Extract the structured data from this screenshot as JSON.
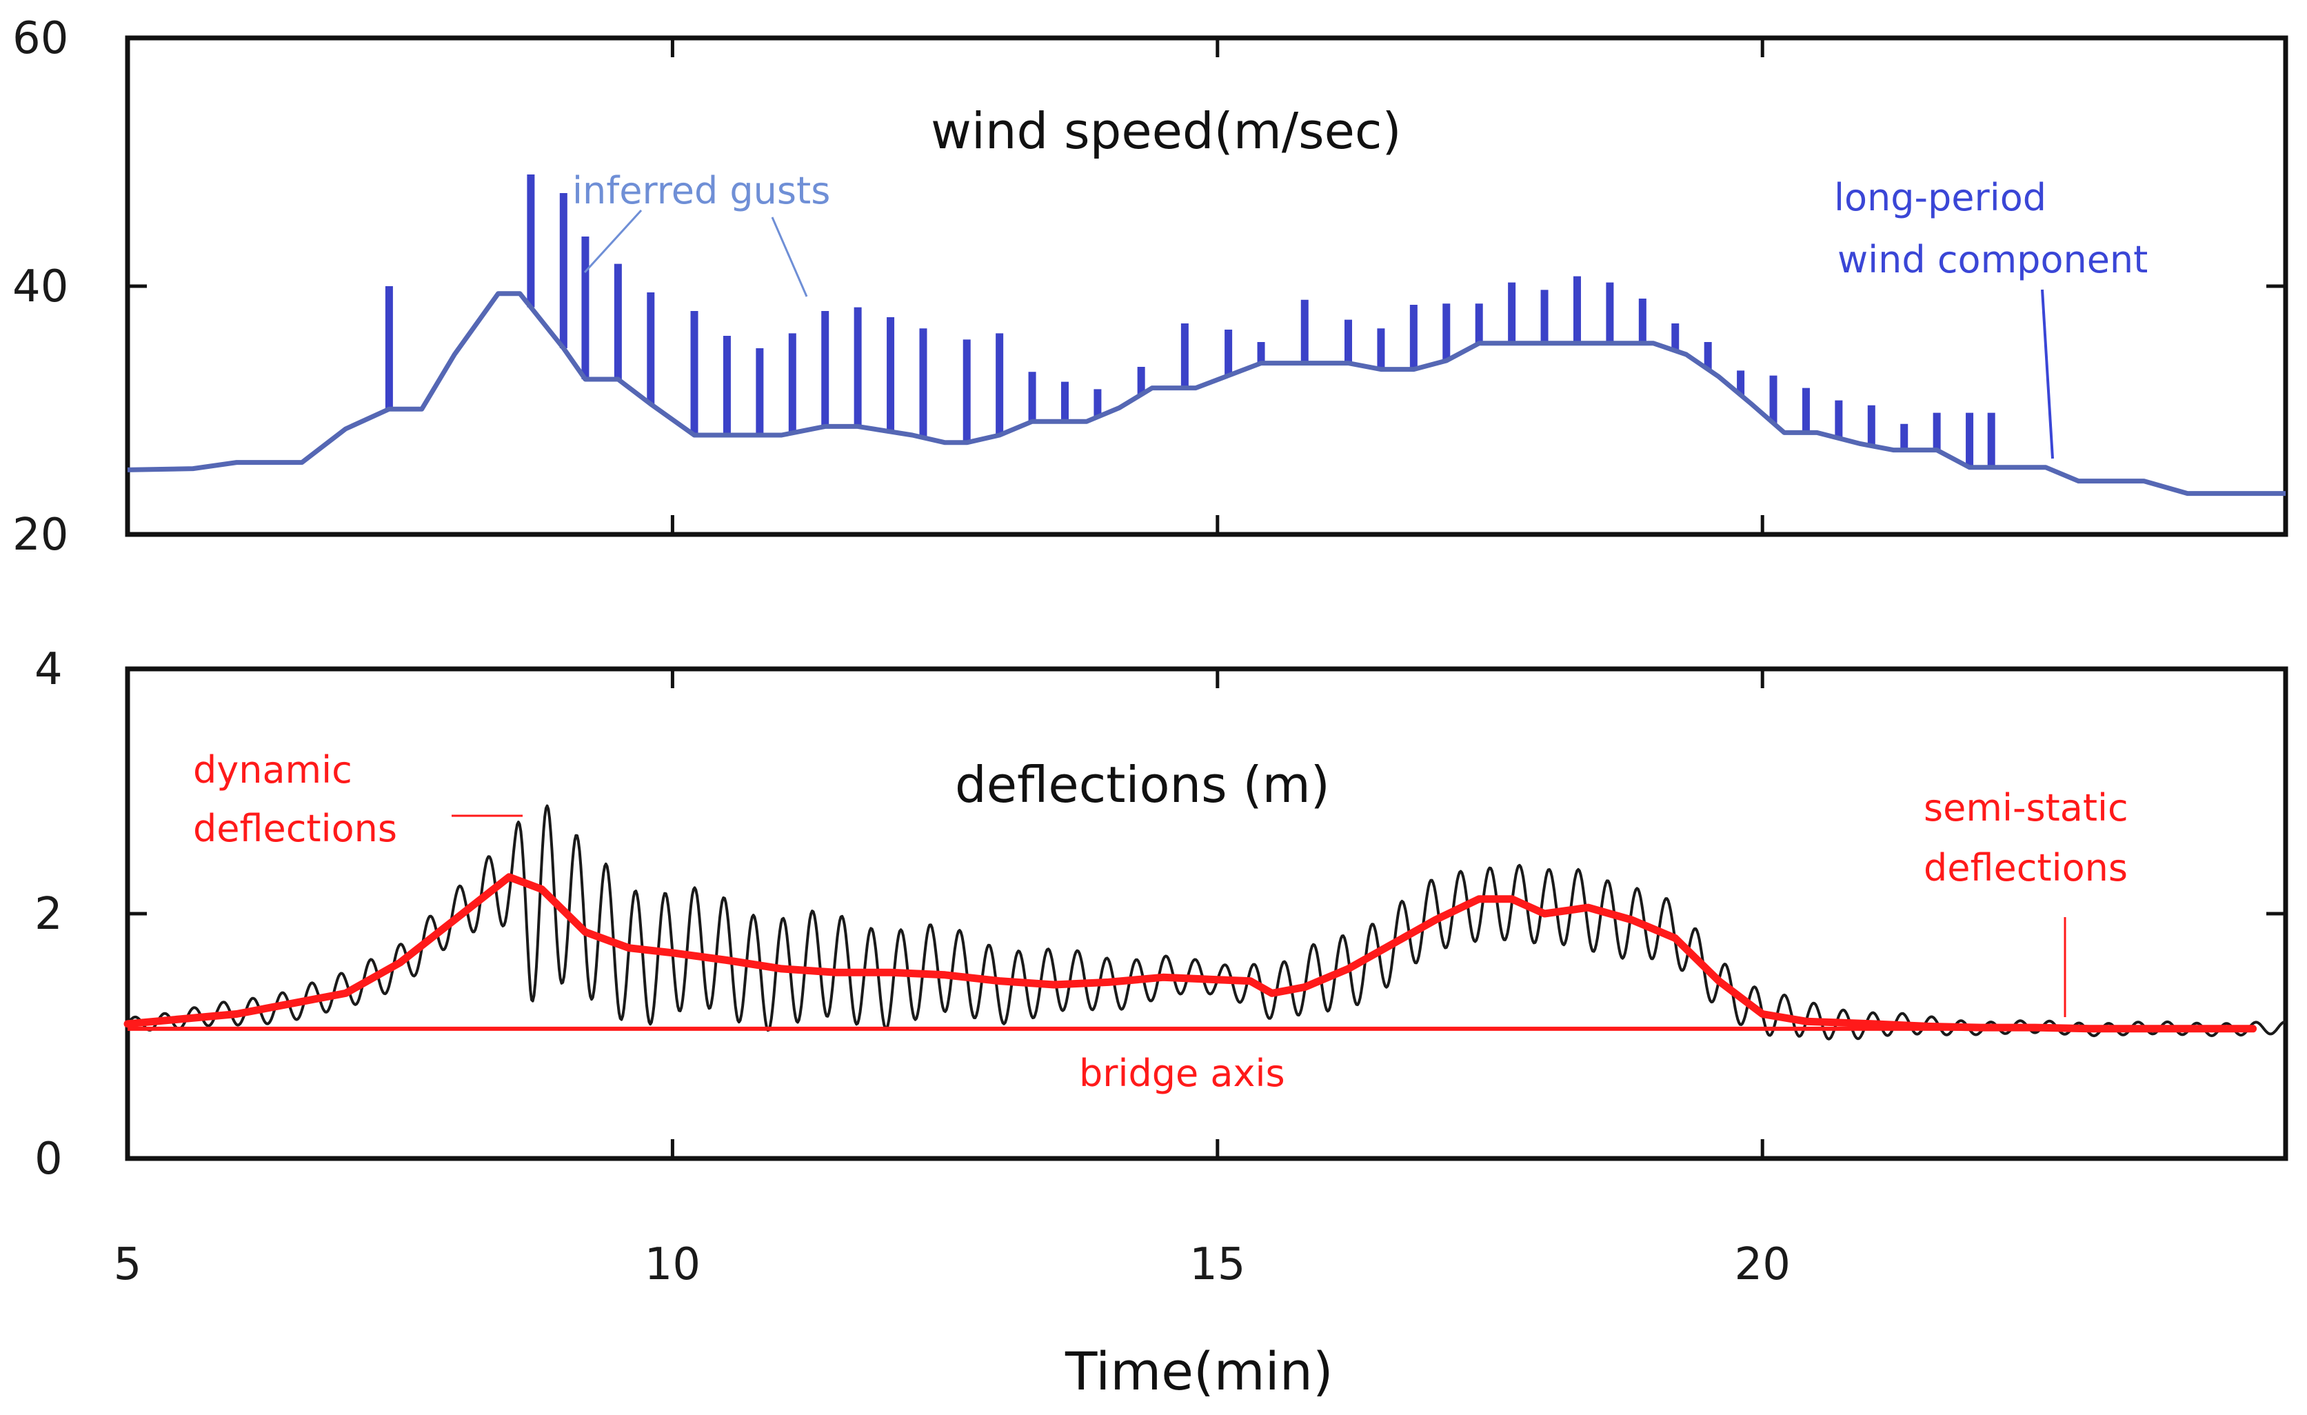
{
  "colors": {
    "wind_line": "#5567b4",
    "gusts": "#3b42c8",
    "gust_annotation": "#6f8fd6",
    "long_period_annotation": "#3a46d6",
    "deflection_line": "#1a1a1a",
    "semi_static": "#ff1a1a",
    "axes": "#111111"
  },
  "chart_data": [
    {
      "type": "line",
      "title": "wind speed(m/sec)",
      "xlabel": "",
      "ylabel": "",
      "xlim": [
        5,
        24.8
      ],
      "ylim": [
        20,
        60
      ],
      "xticks": [
        5,
        10,
        15,
        20
      ],
      "yticks": [
        20,
        40,
        60
      ],
      "y_tick_labels": [
        "20",
        "40",
        "60"
      ],
      "grid": false,
      "series": [
        {
          "name": "long-period wind component",
          "x": [
            5.0,
            5.6,
            6.0,
            6.6,
            7.0,
            7.4,
            7.7,
            8.0,
            8.4,
            8.6,
            9.0,
            9.2,
            9.5,
            9.8,
            10.2,
            11.0,
            11.4,
            11.7,
            12.2,
            12.5,
            12.7,
            13.0,
            13.3,
            13.6,
            13.8,
            14.1,
            14.4,
            14.8,
            15.1,
            15.4,
            15.8,
            16.2,
            16.5,
            16.8,
            17.1,
            17.4,
            17.7,
            18.0,
            18.3,
            18.6,
            19.0,
            19.3,
            19.6,
            19.9,
            20.2,
            20.5,
            20.9,
            21.2,
            21.6,
            21.9,
            22.2,
            22.6,
            22.9,
            23.2,
            23.5,
            23.9,
            24.2,
            24.5,
            24.8
          ],
          "y": [
            25.2,
            25.3,
            25.8,
            25.8,
            28.5,
            30.1,
            30.1,
            34.5,
            39.4,
            39.4,
            35.0,
            32.5,
            32.5,
            30.5,
            28.0,
            28.0,
            28.7,
            28.7,
            28.0,
            27.4,
            27.4,
            28.0,
            29.1,
            29.1,
            29.1,
            30.2,
            31.8,
            31.8,
            32.8,
            33.8,
            33.8,
            33.8,
            33.3,
            33.3,
            34.0,
            35.4,
            35.4,
            35.4,
            35.4,
            35.4,
            35.4,
            34.5,
            32.7,
            30.5,
            28.2,
            28.2,
            27.3,
            26.8,
            26.8,
            25.4,
            25.4,
            25.4,
            24.3,
            24.3,
            24.3,
            23.3,
            23.3,
            23.3,
            23.3
          ]
        },
        {
          "name": "inferred gusts",
          "type": "bar",
          "x": [
            7.4,
            8.7,
            9.0,
            9.2,
            9.5,
            9.8,
            10.2,
            10.5,
            10.8,
            11.1,
            11.4,
            11.7,
            12.0,
            12.3,
            12.7,
            13.0,
            13.3,
            13.6,
            13.9,
            14.3,
            14.7,
            15.1,
            15.4,
            15.8,
            16.2,
            16.5,
            16.8,
            17.1,
            17.4,
            17.7,
            18.0,
            18.3,
            18.6,
            18.9,
            19.2,
            19.5,
            19.8,
            20.1,
            20.4,
            20.7,
            21.0,
            21.3,
            21.6,
            21.9,
            22.1
          ],
          "y": [
            40.0,
            49.0,
            47.5,
            44.0,
            41.8,
            39.5,
            38.0,
            36.0,
            35.0,
            36.2,
            38.0,
            38.3,
            37.5,
            36.6,
            35.7,
            36.2,
            33.1,
            32.3,
            31.7,
            33.5,
            37.0,
            36.5,
            35.5,
            38.9,
            37.3,
            36.6,
            38.5,
            38.6,
            38.6,
            40.3,
            39.7,
            40.8,
            40.3,
            39.0,
            37.0,
            35.5,
            33.2,
            32.8,
            31.8,
            30.8,
            30.4,
            28.9,
            29.8,
            29.8,
            29.8
          ]
        }
      ],
      "annotations": [
        "inferred gusts",
        "long-period\nwind component"
      ]
    },
    {
      "type": "line",
      "title": "deflections (m)",
      "xlabel": "Time(min)",
      "ylabel": "",
      "xlim": [
        5,
        24.8
      ],
      "ylim": [
        0,
        4
      ],
      "xticks": [
        5,
        10,
        15,
        20
      ],
      "x_tick_labels": [
        "5",
        "10",
        "15",
        "20"
      ],
      "yticks": [
        0,
        2,
        4
      ],
      "y_tick_labels": [
        "0",
        "2",
        "4"
      ],
      "grid": false,
      "series": [
        {
          "name": "semi-static deflections",
          "x": [
            5.0,
            6.0,
            7.0,
            7.5,
            8.0,
            8.5,
            8.8,
            9.2,
            9.6,
            10.0,
            10.5,
            11.0,
            11.5,
            12.0,
            12.5,
            13.0,
            13.5,
            14.0,
            14.5,
            15.0,
            15.3,
            15.5,
            15.8,
            16.2,
            16.6,
            17.0,
            17.4,
            17.7,
            18.0,
            18.4,
            18.8,
            19.2,
            19.6,
            20.0,
            20.4,
            21.0,
            21.5,
            22.0,
            22.5,
            23.0,
            23.5,
            24.5
          ],
          "y": [
            1.1,
            1.18,
            1.35,
            1.6,
            1.95,
            2.3,
            2.2,
            1.85,
            1.72,
            1.68,
            1.62,
            1.55,
            1.52,
            1.52,
            1.5,
            1.45,
            1.42,
            1.44,
            1.48,
            1.46,
            1.45,
            1.35,
            1.4,
            1.55,
            1.75,
            1.95,
            2.12,
            2.12,
            2.0,
            2.05,
            1.95,
            1.8,
            1.45,
            1.18,
            1.12,
            1.1,
            1.08,
            1.07,
            1.07,
            1.06,
            1.06,
            1.06
          ]
        },
        {
          "name": "dynamic deflections",
          "x": [
            5.0,
            8.0,
            8.5,
            8.7,
            9.0,
            10.0,
            12.0,
            15.0,
            16.0,
            17.5,
            18.5,
            19.5,
            20.0,
            21.0,
            22.0,
            24.8
          ],
          "amplitude": [
            0.05,
            0.2,
            0.35,
            0.85,
            0.65,
            0.5,
            0.4,
            0.12,
            0.3,
            0.3,
            0.32,
            0.22,
            0.18,
            0.1,
            0.05,
            0.05
          ],
          "cycles_per_min": 3.7
        },
        {
          "name": "bridge axis",
          "x": [
            5.0,
            24.5
          ],
          "y": [
            1.06,
            1.06
          ]
        }
      ],
      "annotations": [
        "dynamic\ndeflections",
        "semi-static\ndeflections",
        "bridge axis"
      ]
    }
  ],
  "labels": {
    "wind_title": "wind speed(m/sec)",
    "deflection_title": "deflections (m)",
    "xlabel": "Time(min)",
    "inferred_gusts": "inferred gusts",
    "long_period_1": "long-period",
    "long_period_2": "wind component",
    "dynamic_1": "dynamic",
    "dynamic_2": "deflections",
    "semi_static_1": "semi-static",
    "semi_static_2": "deflections",
    "bridge_axis": "bridge axis"
  }
}
